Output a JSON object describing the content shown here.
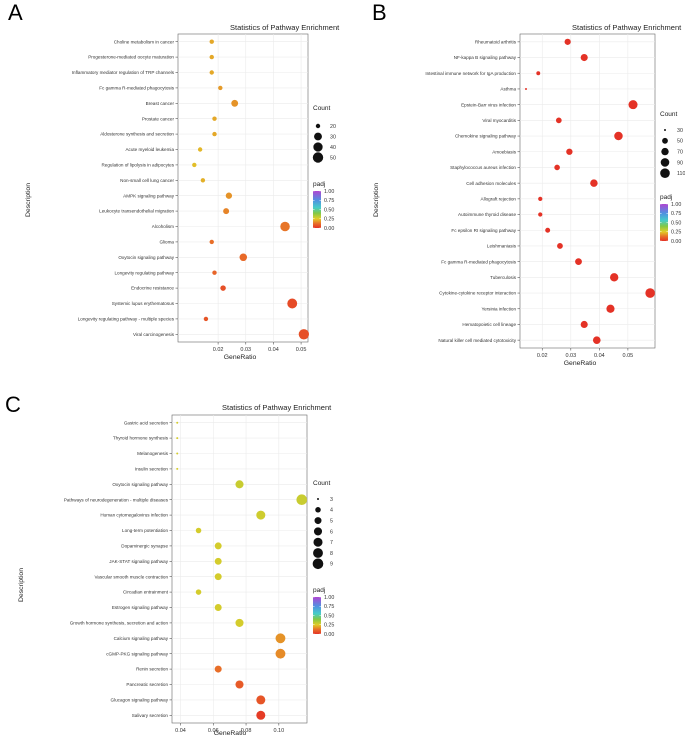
{
  "chart_data": [
    {
      "panel": "A",
      "type": "scatter",
      "title": "Statistics of Pathway Enrichment",
      "xlabel": "GeneRatio",
      "ylabel": "Description",
      "xlim": [
        0.0055,
        0.0525
      ],
      "xticks": [
        0.02,
        0.03,
        0.04,
        0.05
      ],
      "xtick_labels": [
        "0.02",
        "0.03",
        "0.04",
        "0.05"
      ],
      "count_legend": {
        "title": "Count",
        "values": [
          20,
          30,
          40,
          50
        ],
        "labels": [
          "20",
          "30",
          "40",
          "50"
        ]
      },
      "padj_legend": {
        "title": "padj",
        "ticks": [
          1.0,
          0.75,
          0.5,
          0.25,
          0.0
        ],
        "labels": [
          "1.00",
          "0.75",
          "0.50",
          "0.25",
          "0.00"
        ]
      },
      "points": [
        {
          "label": "Choline metabolism in cancer",
          "x": 0.0177,
          "count": 17,
          "padj": 0.2
        },
        {
          "label": "Progesterone-mediated oocyte maturation",
          "x": 0.0177,
          "count": 17,
          "padj": 0.2
        },
        {
          "label": "Inflammatory mediator regulation of TRP channels",
          "x": 0.0177,
          "count": 17,
          "padj": 0.2
        },
        {
          "label": "Fc gamma R-mediated phagocytosis",
          "x": 0.0208,
          "count": 20,
          "padj": 0.18
        },
        {
          "label": "Breast cancer",
          "x": 0.026,
          "count": 25,
          "padj": 0.17
        },
        {
          "label": "Prostate cancer",
          "x": 0.0187,
          "count": 18,
          "padj": 0.2
        },
        {
          "label": "Aldosterone synthesis and secretion",
          "x": 0.0187,
          "count": 18,
          "padj": 0.2
        },
        {
          "label": "Acute myeloid leukemia",
          "x": 0.0135,
          "count": 13,
          "padj": 0.22
        },
        {
          "label": "Regulation of lipolysis in adipocytes",
          "x": 0.0114,
          "count": 11,
          "padj": 0.23
        },
        {
          "label": "Non-small cell lung cancer",
          "x": 0.0145,
          "count": 14,
          "padj": 0.21
        },
        {
          "label": "AMPK signaling pathway",
          "x": 0.0239,
          "count": 23,
          "padj": 0.17
        },
        {
          "label": "Leukocyte transendothelial migration",
          "x": 0.0229,
          "count": 22,
          "padj": 0.15
        },
        {
          "label": "Alcoholism",
          "x": 0.0442,
          "count": 42,
          "padj": 0.13
        },
        {
          "label": "Glioma",
          "x": 0.0177,
          "count": 17,
          "padj": 0.12
        },
        {
          "label": "Oxytocin signaling pathway",
          "x": 0.0291,
          "count": 28,
          "padj": 0.11
        },
        {
          "label": "Longevity regulating pathway",
          "x": 0.0187,
          "count": 18,
          "padj": 0.1
        },
        {
          "label": "Endocrine resistance",
          "x": 0.0218,
          "count": 21,
          "padj": 0.06
        },
        {
          "label": "Systemic lupus erythematosus",
          "x": 0.0468,
          "count": 45,
          "padj": 0.05
        },
        {
          "label": "Longevity regulating pathway - multiple species",
          "x": 0.0156,
          "count": 15,
          "padj": 0.07
        },
        {
          "label": "Viral carcinogenesis",
          "x": 0.051,
          "count": 49,
          "padj": 0.06
        }
      ]
    },
    {
      "panel": "B",
      "type": "scatter",
      "title": "Statistics of Pathway Enrichment",
      "xlabel": "GeneRatio",
      "ylabel": "Description",
      "xlim": [
        0.0122,
        0.0595
      ],
      "xticks": [
        0.02,
        0.03,
        0.04,
        0.05
      ],
      "xtick_labels": [
        "0.02",
        "0.03",
        "0.04",
        "0.05"
      ],
      "count_legend": {
        "title": "Count",
        "values": [
          30,
          50,
          70,
          90,
          110
        ],
        "labels": [
          "30",
          "50",
          "70",
          "90",
          "110"
        ]
      },
      "padj_legend": {
        "title": "padj",
        "ticks": [
          1.0,
          0.75,
          0.5,
          0.25,
          0.0
        ],
        "labels": [
          "1.00",
          "0.75",
          "0.50",
          "0.25",
          "0.00"
        ]
      },
      "points": [
        {
          "label": "Rheumatoid arthritis",
          "x": 0.0289,
          "count": 55,
          "padj": 0.0
        },
        {
          "label": "NF-kappa B signaling pathway",
          "x": 0.0347,
          "count": 66,
          "padj": 0.0
        },
        {
          "label": "Intestinal immune network for IgA production",
          "x": 0.0186,
          "count": 35,
          "padj": 0.0
        },
        {
          "label": "Asthma",
          "x": 0.0143,
          "count": 18,
          "padj": 0.0
        },
        {
          "label": "Epstein-Barr virus infection",
          "x": 0.0518,
          "count": 99,
          "padj": 0.0
        },
        {
          "label": "Viral myocarditis",
          "x": 0.0258,
          "count": 49,
          "padj": 0.0
        },
        {
          "label": "Chemokine signaling pathway",
          "x": 0.0467,
          "count": 89,
          "padj": 0.0
        },
        {
          "label": "Amoebiasis",
          "x": 0.0295,
          "count": 56,
          "padj": 0.0
        },
        {
          "label": "Staphylococcus aureus infection",
          "x": 0.0252,
          "count": 48,
          "padj": 0.0
        },
        {
          "label": "Cell adhesion molecules",
          "x": 0.0381,
          "count": 72,
          "padj": 0.0
        },
        {
          "label": "Allograft rejection",
          "x": 0.0193,
          "count": 37,
          "padj": 0.0
        },
        {
          "label": "Autoimmune thyroid disease",
          "x": 0.0193,
          "count": 37,
          "padj": 0.0
        },
        {
          "label": "Fc epsilon RI signaling pathway",
          "x": 0.0219,
          "count": 42,
          "padj": 0.0
        },
        {
          "label": "Leishmaniasis",
          "x": 0.0262,
          "count": 50,
          "padj": 0.0
        },
        {
          "label": "Fc gamma R-mediated phagocytosis",
          "x": 0.0327,
          "count": 62,
          "padj": 0.0
        },
        {
          "label": "Tuberculosis",
          "x": 0.0452,
          "count": 86,
          "padj": 0.0
        },
        {
          "label": "Cytokine-cytokine receptor interaction",
          "x": 0.0578,
          "count": 110,
          "padj": 0.0
        },
        {
          "label": "Yersinia infection",
          "x": 0.0439,
          "count": 83,
          "padj": 0.0
        },
        {
          "label": "Hematopoietic cell lineage",
          "x": 0.0347,
          "count": 66,
          "padj": 0.0
        },
        {
          "label": "Natural killer cell mediated cytotoxicity",
          "x": 0.0391,
          "count": 74,
          "padj": 0.0
        }
      ]
    },
    {
      "panel": "C",
      "type": "scatter",
      "title": "Statistics of Pathway Enrichment",
      "xlabel": "GeneRatio",
      "ylabel": "Description",
      "xlim": [
        0.0348,
        0.1172
      ],
      "xticks": [
        0.04,
        0.06,
        0.08,
        0.1
      ],
      "xtick_labels": [
        "0.04",
        "0.06",
        "0.08",
        "0.10"
      ],
      "count_legend": {
        "title": "Count",
        "values": [
          3,
          4,
          5,
          6,
          7,
          8,
          9
        ],
        "labels": [
          "3",
          "4",
          "5",
          "6",
          "7",
          "8",
          "9"
        ]
      },
      "padj_legend": {
        "title": "padj",
        "ticks": [
          1.0,
          0.75,
          0.5,
          0.25,
          0.0
        ],
        "labels": [
          "1.00",
          "0.75",
          "0.50",
          "0.25",
          "0.00"
        ]
      },
      "points": [
        {
          "label": "Gastric acid secretion",
          "x": 0.038,
          "count": 3,
          "padj": 0.27
        },
        {
          "label": "Thyroid hormone synthesis",
          "x": 0.038,
          "count": 3,
          "padj": 0.27
        },
        {
          "label": "Melanogenesis",
          "x": 0.038,
          "count": 3,
          "padj": 0.27
        },
        {
          "label": "Insulin secretion",
          "x": 0.038,
          "count": 3,
          "padj": 0.27
        },
        {
          "label": "Oxytocin signaling pathway",
          "x": 0.076,
          "count": 6,
          "padj": 0.29
        },
        {
          "label": "Pathways of neurodegeneration - multiple diseases",
          "x": 0.114,
          "count": 9,
          "padj": 0.29
        },
        {
          "label": "Human cytomegalovirus infection",
          "x": 0.089,
          "count": 7,
          "padj": 0.28
        },
        {
          "label": "Long-term potentiation",
          "x": 0.051,
          "count": 4,
          "padj": 0.27
        },
        {
          "label": "Dopaminergic synapse",
          "x": 0.063,
          "count": 5,
          "padj": 0.27
        },
        {
          "label": "JAK-STAT signaling pathway",
          "x": 0.063,
          "count": 5,
          "padj": 0.27
        },
        {
          "label": "Vascular smooth muscle contraction",
          "x": 0.063,
          "count": 5,
          "padj": 0.27
        },
        {
          "label": "Circadian entrainment",
          "x": 0.051,
          "count": 4,
          "padj": 0.27
        },
        {
          "label": "Estrogen signaling pathway",
          "x": 0.063,
          "count": 5,
          "padj": 0.27
        },
        {
          "label": "Growth hormone synthesis, secretion and action",
          "x": 0.076,
          "count": 6,
          "padj": 0.27
        },
        {
          "label": "Calcium signaling pathway",
          "x": 0.101,
          "count": 8,
          "padj": 0.17
        },
        {
          "label": "cGMP-PKG signaling pathway",
          "x": 0.101,
          "count": 8,
          "padj": 0.16
        },
        {
          "label": "Renin secretion",
          "x": 0.063,
          "count": 5,
          "padj": 0.12
        },
        {
          "label": "Pancreatic secretion",
          "x": 0.076,
          "count": 6,
          "padj": 0.08
        },
        {
          "label": "Glucagon signaling pathway",
          "x": 0.089,
          "count": 7,
          "padj": 0.07
        },
        {
          "label": "Salivary secretion",
          "x": 0.089,
          "count": 7,
          "padj": 0.02
        }
      ]
    }
  ]
}
